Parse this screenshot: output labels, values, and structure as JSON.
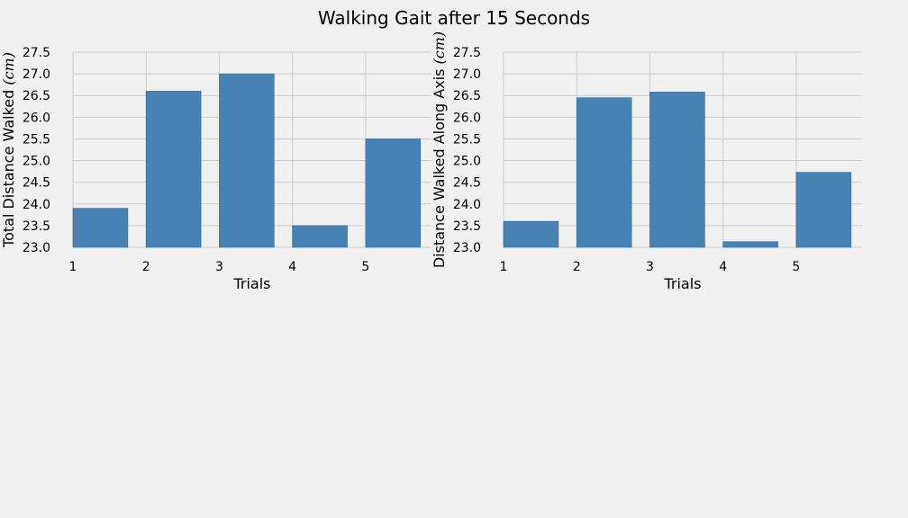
{
  "figure": {
    "title": "Walking Gait after 15 Seconds"
  },
  "colors": {
    "background": "#f0f0f0",
    "bar": "#4682b4",
    "bar_edge": "#3b6d97",
    "grid": "#cbcbcb"
  },
  "chart_data": [
    {
      "type": "bar",
      "x": [
        1,
        2,
        3,
        4,
        5
      ],
      "values": [
        23.9,
        26.6,
        27.0,
        23.5,
        25.5
      ],
      "xlabel": "Trials",
      "ylabel_text": "Total Distance Walked",
      "ylabel_unit": "(cm)",
      "ylim": [
        23.0,
        27.5
      ],
      "yticks": [
        23.0,
        23.5,
        24.0,
        24.5,
        25.0,
        25.5,
        26.0,
        26.5,
        27.0,
        27.5
      ],
      "xticks": [
        1,
        2,
        3,
        4,
        5
      ],
      "grid": true
    },
    {
      "type": "bar",
      "x": [
        1,
        2,
        3,
        4,
        5
      ],
      "values": [
        23.6,
        26.45,
        26.58,
        23.13,
        24.73
      ],
      "xlabel": "Trials",
      "ylabel_text": "Distance Walked Along Axis",
      "ylabel_unit": "(cm)",
      "ylim": [
        23.0,
        27.5
      ],
      "yticks": [
        23.0,
        23.5,
        24.0,
        24.5,
        25.0,
        25.5,
        26.0,
        26.5,
        27.0,
        27.5
      ],
      "xticks": [
        1,
        2,
        3,
        4,
        5
      ],
      "grid": true
    }
  ]
}
